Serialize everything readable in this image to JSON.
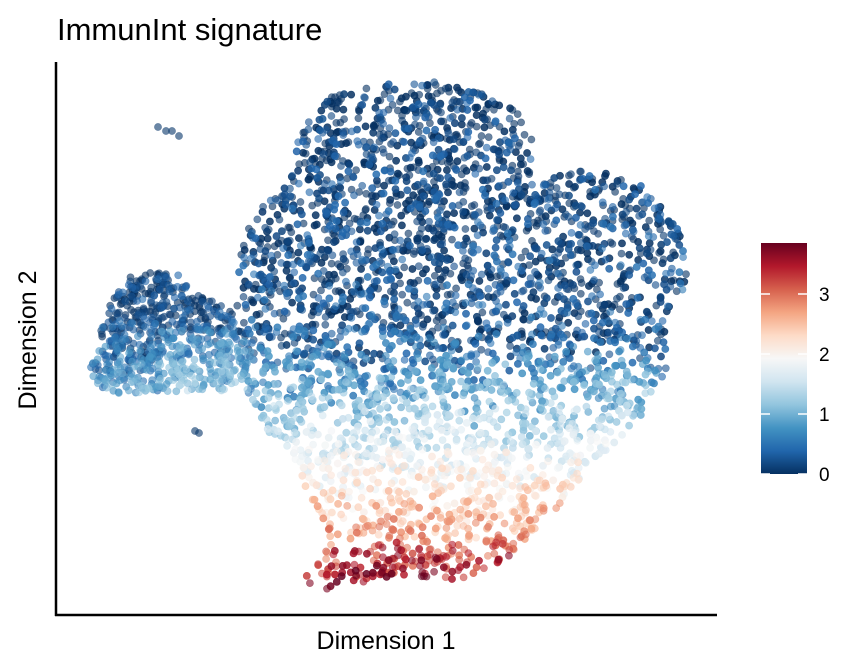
{
  "chart_data": {
    "type": "scatter",
    "title": "ImmunInt signature",
    "xlabel": "Dimension 1",
    "ylabel": "Dimension 2",
    "axis_ticks_shown": false,
    "grid": false,
    "legend": "right",
    "colorbar": {
      "ticks": [
        0,
        1,
        2,
        3
      ],
      "range": [
        0,
        3.85
      ],
      "colors": [
        "#053061",
        "#2166ac",
        "#4393c3",
        "#92c5de",
        "#d1e5f0",
        "#f7f7f7",
        "#fddbc7",
        "#f4a582",
        "#d6604d",
        "#b2182b",
        "#67001f"
      ]
    },
    "note_on_points": "Many thousands of points; expression is low (~0) in the upper clusters, rising toward ~1.5 in the middle and ~3-3.8 in the bottom lobe.",
    "point_summary": [
      {
        "region": "left cluster",
        "value_range": [
          0,
          1.2
        ]
      },
      {
        "region": "upper-center cluster",
        "value_range": [
          0,
          0.6
        ]
      },
      {
        "region": "upper-right cluster",
        "value_range": [
          0,
          0.6
        ]
      },
      {
        "region": "middle band",
        "value_range": [
          0.5,
          2
        ]
      },
      {
        "region": "lower stem",
        "value_range": [
          1.2,
          2.5
        ]
      },
      {
        "region": "bottom lobe",
        "value_range": [
          2.2,
          3.85
        ]
      }
    ]
  }
}
